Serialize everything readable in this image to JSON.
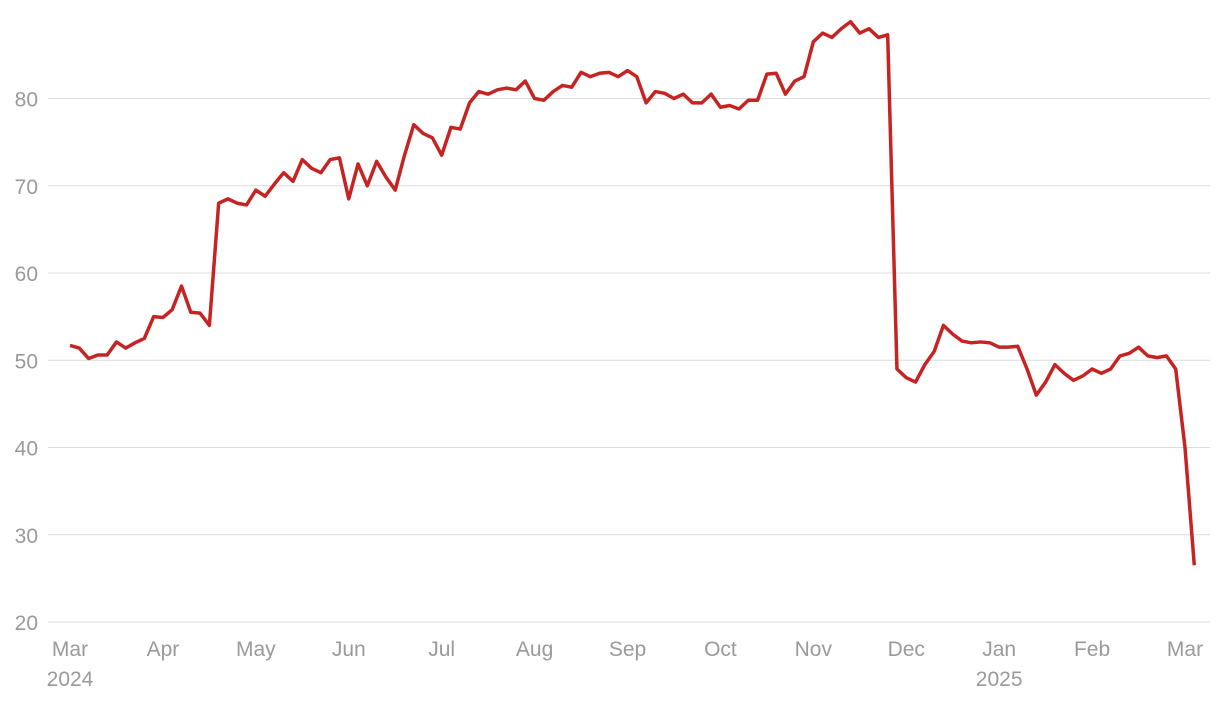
{
  "chart_data": {
    "type": "line",
    "categories": [
      "Mar 2024",
      null,
      null,
      null,
      null,
      null,
      null,
      null,
      null,
      null,
      "Apr",
      null,
      null,
      null,
      null,
      null,
      null,
      null,
      null,
      null,
      "May",
      null,
      null,
      null,
      null,
      null,
      null,
      null,
      null,
      null,
      "Jun",
      null,
      null,
      null,
      null,
      null,
      null,
      null,
      null,
      null,
      "Jul",
      null,
      null,
      null,
      null,
      null,
      null,
      null,
      null,
      null,
      "Aug",
      null,
      null,
      null,
      null,
      null,
      null,
      null,
      null,
      null,
      "Sep",
      null,
      null,
      null,
      null,
      null,
      null,
      null,
      null,
      null,
      "Oct",
      null,
      null,
      null,
      null,
      null,
      null,
      null,
      null,
      null,
      "Nov",
      null,
      null,
      null,
      null,
      null,
      null,
      null,
      null,
      null,
      "Dec",
      null,
      null,
      null,
      null,
      null,
      null,
      null,
      null,
      null,
      "Jan 2025",
      null,
      null,
      null,
      null,
      null,
      null,
      null,
      null,
      null,
      "Feb",
      null,
      null,
      null,
      null,
      null,
      null,
      null,
      null,
      null,
      "Mar",
      null
    ],
    "values": [
      51.7,
      51.4,
      50.2,
      50.6,
      50.6,
      52.1,
      51.4,
      52.0,
      52.5,
      55.0,
      54.9,
      55.8,
      58.5,
      55.5,
      55.4,
      54.0,
      68.0,
      68.5,
      68.0,
      67.8,
      69.5,
      68.8,
      70.2,
      71.5,
      70.5,
      73.0,
      72.0,
      71.5,
      73.0,
      73.2,
      68.5,
      72.5,
      70.0,
      72.8,
      71.0,
      69.5,
      73.5,
      77.0,
      76.0,
      75.5,
      73.5,
      76.7,
      76.5,
      79.5,
      80.8,
      80.5,
      81.0,
      81.2,
      81.0,
      82.0,
      80.0,
      79.8,
      80.8,
      81.5,
      81.3,
      83.0,
      82.5,
      82.9,
      83.0,
      82.5,
      83.2,
      82.5,
      79.5,
      80.8,
      80.6,
      80.0,
      80.5,
      79.5,
      79.5,
      80.5,
      79.0,
      79.2,
      78.8,
      79.8,
      79.8,
      82.8,
      82.9,
      80.5,
      82.0,
      82.5,
      86.5,
      87.5,
      87.0,
      88.0,
      88.8,
      87.5,
      88.0,
      87.0,
      87.3,
      49.0,
      48.0,
      47.5,
      49.5,
      51.0,
      54.0,
      53.0,
      52.2,
      52.0,
      52.1,
      52.0,
      51.5,
      51.5,
      51.6,
      49.0,
      46.0,
      47.5,
      49.5,
      48.5,
      47.7,
      48.2,
      49.0,
      48.5,
      49.0,
      50.5,
      50.8,
      51.5,
      50.5,
      50.3,
      50.5,
      49.0,
      40.0,
      26.5
    ],
    "color": "#c62323",
    "ylim": [
      20,
      89
    ],
    "yticks": [
      20,
      30,
      40,
      50,
      60,
      70,
      80
    ],
    "grid": true
  }
}
